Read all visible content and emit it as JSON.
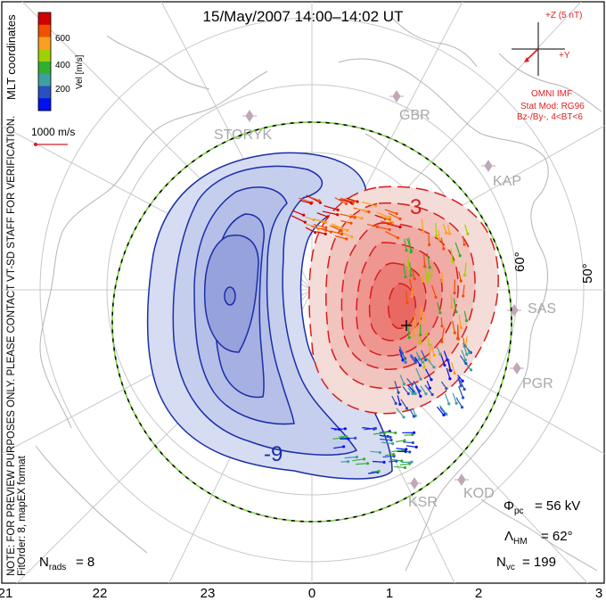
{
  "title": "15/May/2007 14:00–14:02 UT",
  "coordinate_system": "MLT coordinates",
  "velocity_scale": {
    "label": "Vel [m/s]",
    "ticks": [
      "600",
      "400",
      "200"
    ],
    "colors": [
      "#d00000",
      "#f05000",
      "#f8a020",
      "#a0d000",
      "#30b030",
      "#40a0a0",
      "#2850c0",
      "#0010f0"
    ]
  },
  "reference_vector": {
    "label": "1000 m/s",
    "color": "#d02020"
  },
  "imf": {
    "bz_label": "+Z (5 nT)",
    "by_label": "+Y",
    "source": "OMNI IMF",
    "model": "Stat Mod: RG96",
    "condition": "Bz-/By-, 4<BT<6",
    "color": "#e02020"
  },
  "notes": {
    "verification": "NOTE: FOR PREVIEW PURPOSES ONLY. PLEASE CONTACT VT-SD STAFF FOR VERIFICATION.",
    "fit": "FitOrder: 8, mapEX format"
  },
  "stations": [
    "STORYK",
    "GBR",
    "KAP",
    "SAS",
    "PGR",
    "KOD",
    "KSR"
  ],
  "latitude_labels": [
    "60°",
    "50°"
  ],
  "mlt_axis": [
    "21",
    "22",
    "23",
    "0",
    "1",
    "2",
    "3"
  ],
  "contours": {
    "negative_label": "-9",
    "positive_label": "3",
    "negative_color": "#1a2ea8",
    "positive_color": "#d81c1c"
  },
  "stats": {
    "phi_pc": "= 56 kV",
    "lambda_hm": "= 62°",
    "n_vc": "= 199",
    "n_rads": "= 8"
  }
}
